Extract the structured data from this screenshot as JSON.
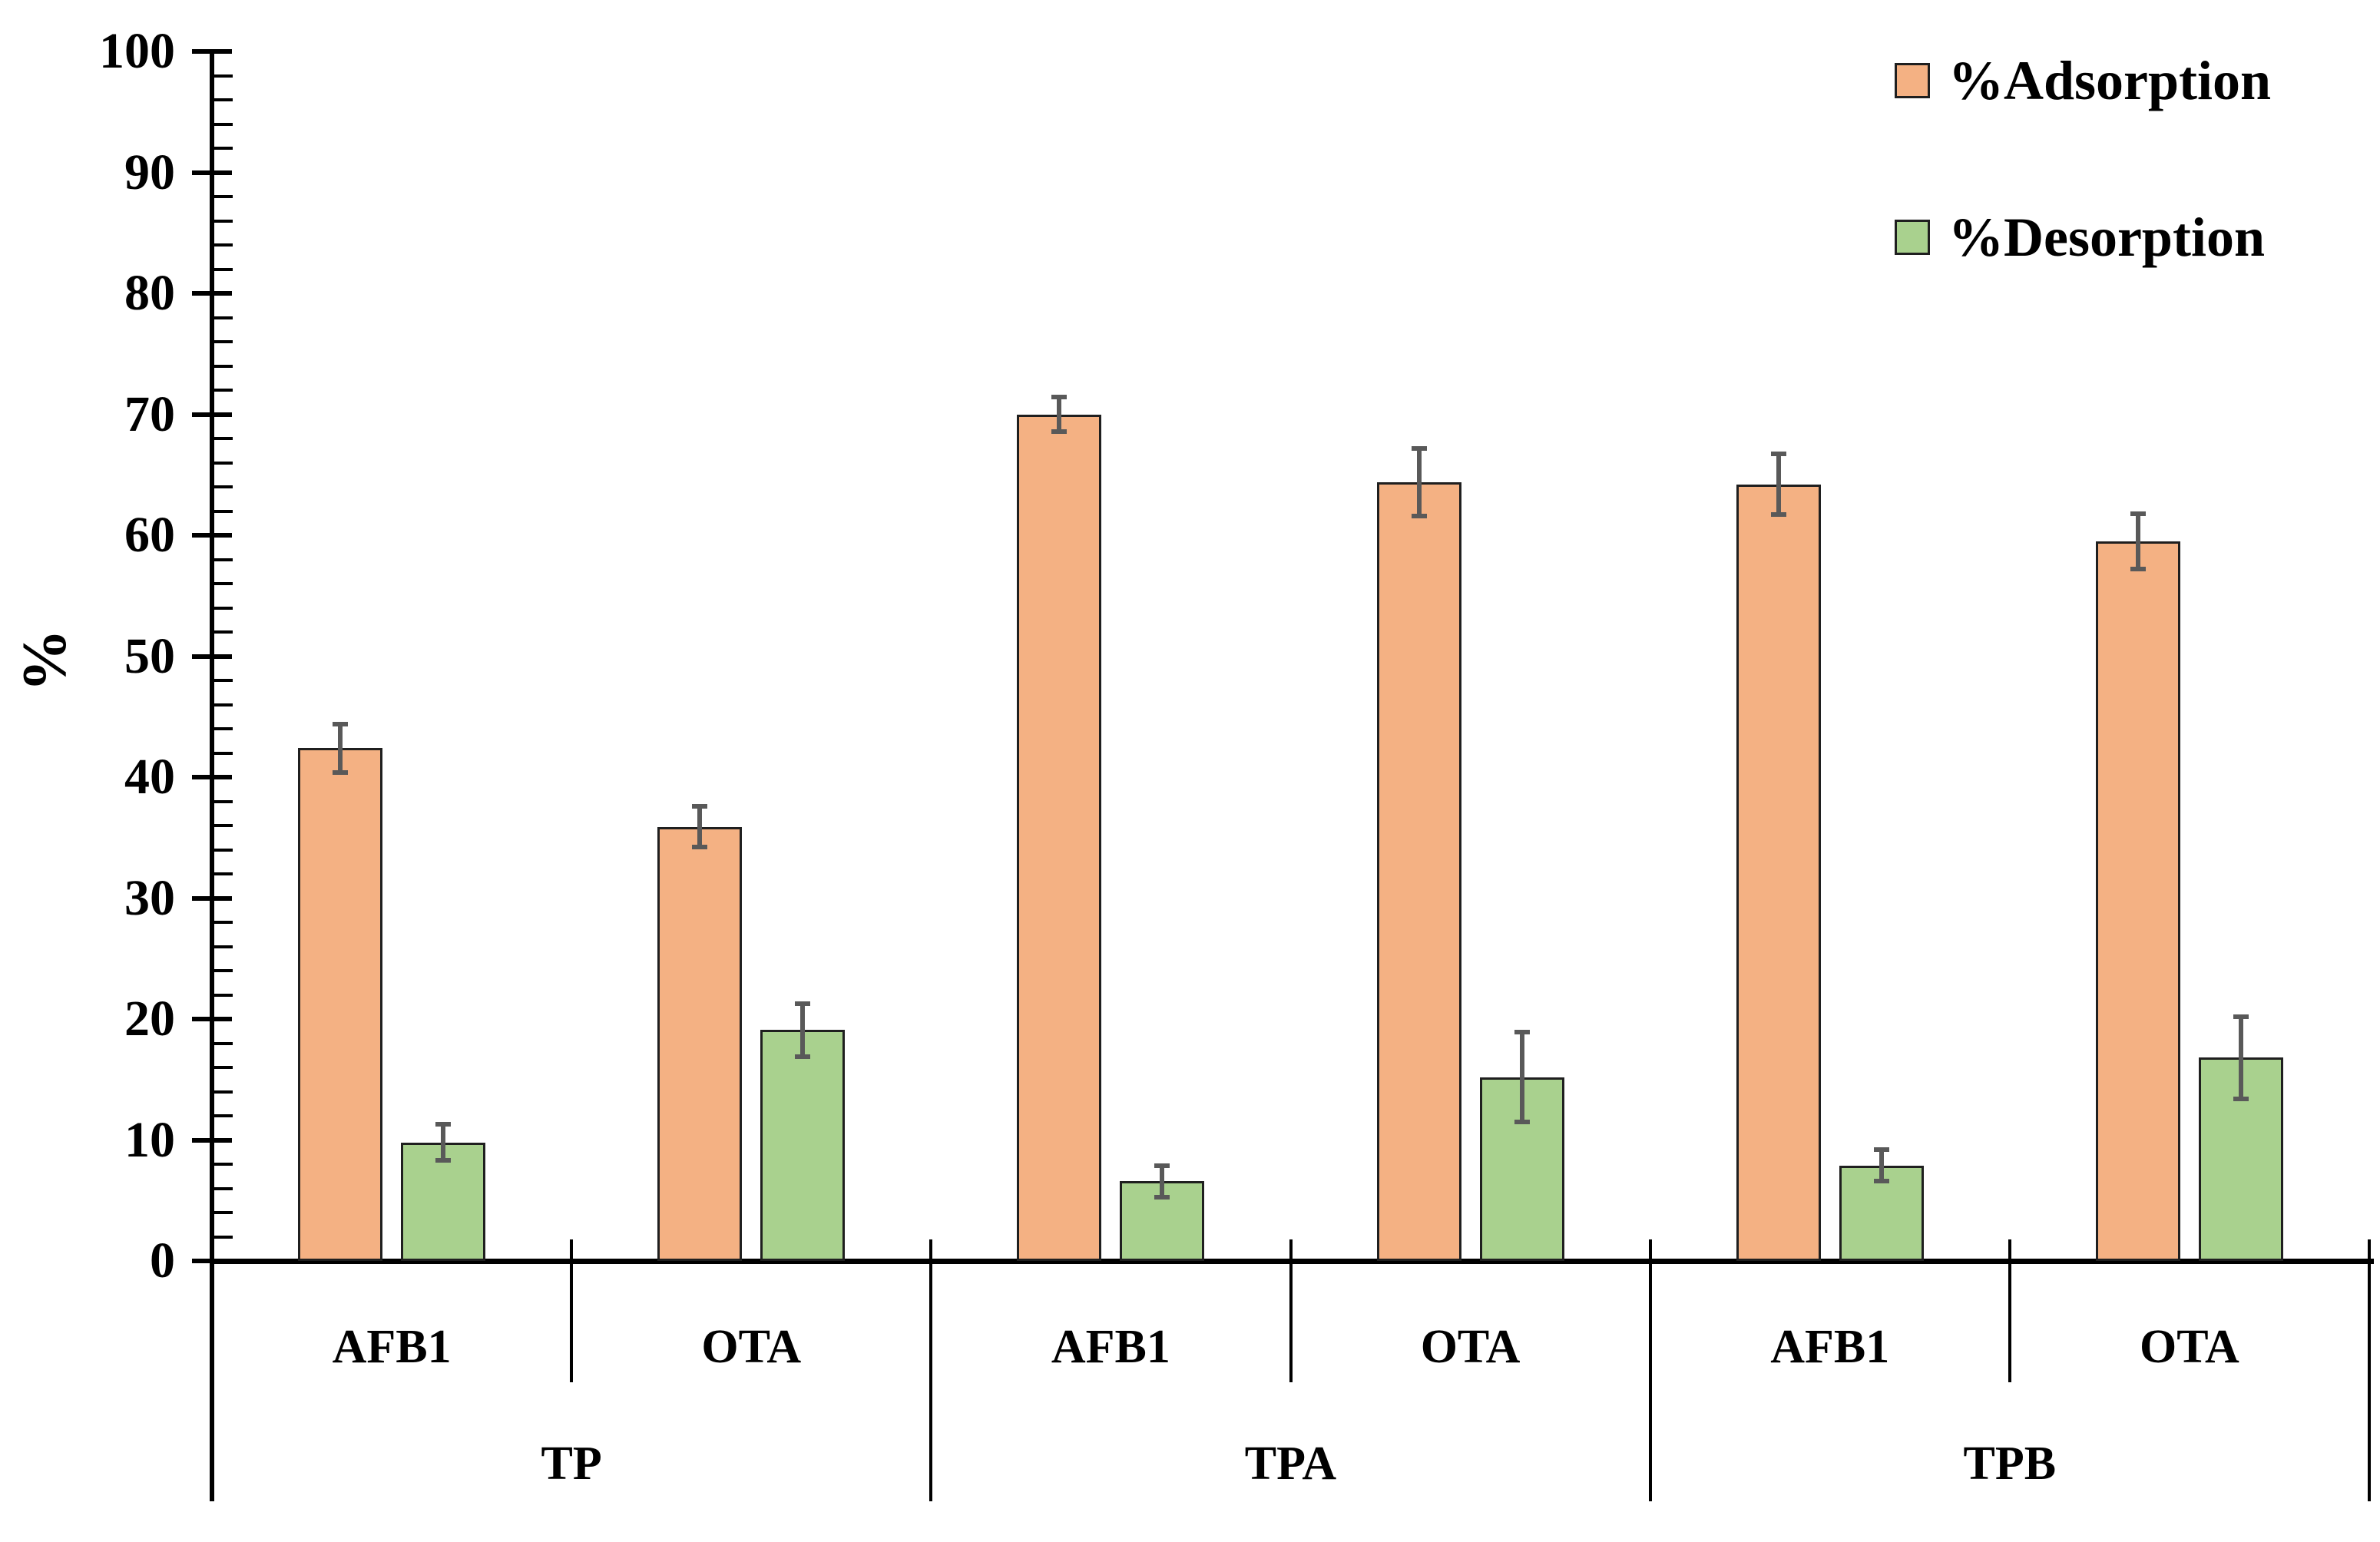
{
  "styles": {
    "background": "#FFFFFF",
    "axis_color": "#000000",
    "bar_border_color": "#1F1F1F",
    "error_bar_color": "#595959",
    "adsorption_color": "#F4B183",
    "desorption_color": "#A9D18E"
  },
  "y_axis": {
    "title": "%",
    "tick_labels": [
      "0",
      "10",
      "20",
      "30",
      "40",
      "50",
      "60",
      "70",
      "80",
      "90",
      "100"
    ]
  },
  "chart_data": {
    "type": "bar",
    "title": "",
    "xlabel": "",
    "ylabel": "%",
    "ylim": [
      0,
      100
    ],
    "y_major_tick": 10,
    "y_minor_tick": 2,
    "grid": false,
    "legend_position": "top-right",
    "group_labels": [
      "TP",
      "TPA",
      "TPB"
    ],
    "categories": [
      {
        "group": "TP",
        "label": "AFB1"
      },
      {
        "group": "TP",
        "label": "OTA"
      },
      {
        "group": "TPA",
        "label": "AFB1"
      },
      {
        "group": "TPA",
        "label": "OTA"
      },
      {
        "group": "TPB",
        "label": "AFB1"
      },
      {
        "group": "TPB",
        "label": "OTA"
      }
    ],
    "series": [
      {
        "name": "%Adsorption",
        "color": "#F4B183",
        "values": [
          42.4,
          35.9,
          70.0,
          64.4,
          64.2,
          59.5
        ],
        "errors": [
          2.0,
          1.7,
          1.4,
          2.8,
          2.5,
          2.3
        ]
      },
      {
        "name": "%Desorption",
        "color": "#A9D18E",
        "values": [
          9.8,
          19.1,
          6.6,
          15.2,
          7.9,
          16.8
        ],
        "errors": [
          1.5,
          2.2,
          1.3,
          3.7,
          1.3,
          3.4
        ]
      }
    ]
  }
}
